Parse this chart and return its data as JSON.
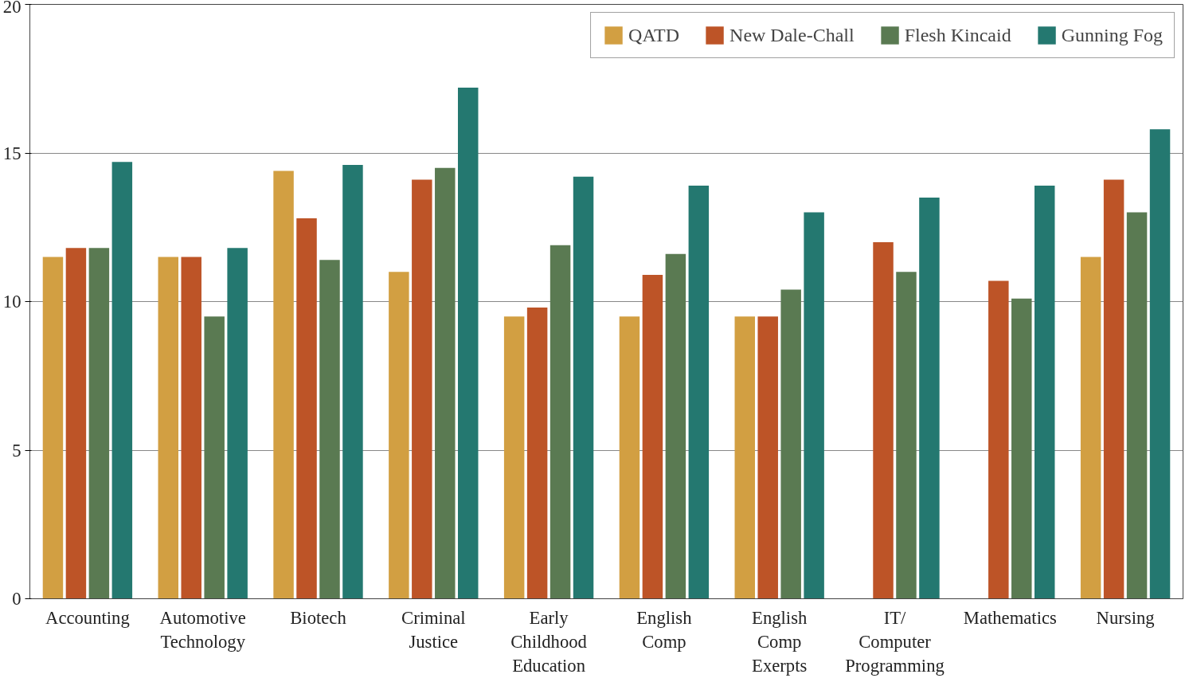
{
  "chart_data": {
    "type": "bar",
    "categories": [
      "Accounting",
      "Automotive Technology",
      "Biotech",
      "Criminal Justice",
      "Early Childhood Education",
      "English Comp",
      "English Comp Exerpts",
      "IT/ Computer Programming",
      "Mathematics",
      "Nursing"
    ],
    "series": [
      {
        "name": "QATD",
        "color": "#d29f42",
        "values": [
          11.5,
          11.5,
          14.4,
          11.0,
          9.5,
          9.5,
          9.5,
          null,
          null,
          11.5
        ]
      },
      {
        "name": "New Dale-Chall",
        "color": "#bd5427",
        "values": [
          11.8,
          11.5,
          12.8,
          14.1,
          9.8,
          10.9,
          9.5,
          12.0,
          10.7,
          14.1
        ]
      },
      {
        "name": "Flesh Kincaid",
        "color": "#5a7a52",
        "values": [
          11.8,
          9.5,
          11.4,
          14.5,
          11.9,
          11.6,
          10.4,
          11.0,
          10.1,
          13.0
        ]
      },
      {
        "name": "Gunning Fog",
        "color": "#247870",
        "values": [
          14.7,
          11.8,
          14.6,
          17.2,
          14.2,
          13.9,
          13.0,
          13.5,
          13.9,
          15.8
        ]
      }
    ],
    "ylim": [
      0,
      20
    ],
    "yticks": [
      0,
      5,
      10,
      15,
      20
    ],
    "grid": "y",
    "legend": "top right"
  }
}
